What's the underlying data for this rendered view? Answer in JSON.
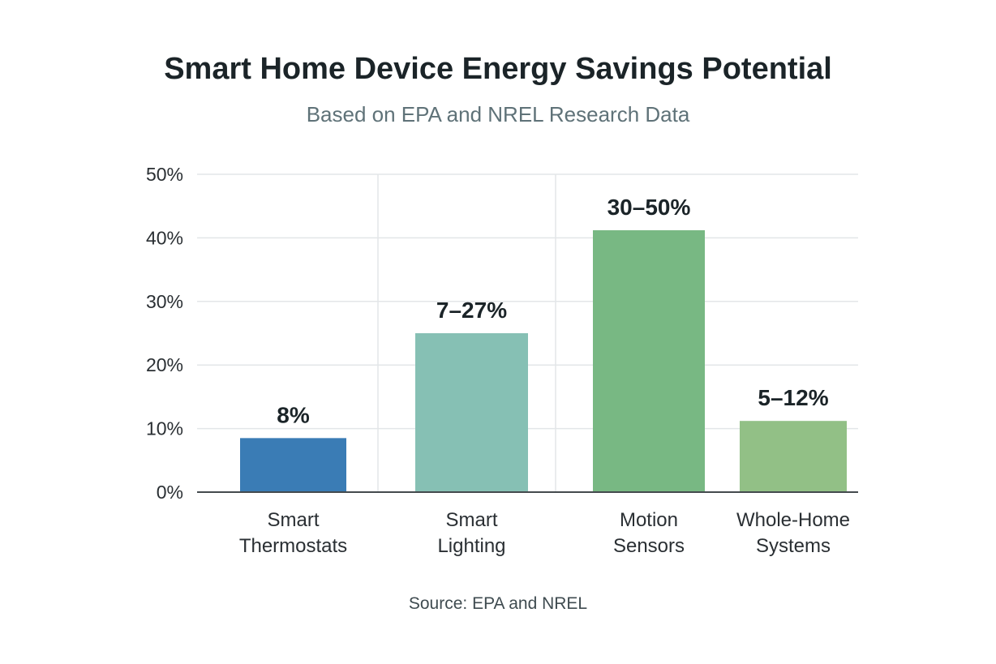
{
  "chart_data": {
    "type": "bar",
    "title": "Smart Home Device Energy Savings Potential",
    "subtitle": "Based on EPA and NREL Research Data",
    "source": "Source: EPA and NREL",
    "xlabel": "",
    "ylabel": "",
    "ylim": [
      0,
      50
    ],
    "yticks": [
      0,
      10,
      20,
      30,
      40,
      50
    ],
    "ytick_labels": [
      "0%",
      "10%",
      "20%",
      "30%",
      "40%",
      "50%"
    ],
    "grid": true,
    "legend": "none",
    "categories": [
      [
        "Smart",
        "Thermostats"
      ],
      [
        "Smart",
        "Lighting"
      ],
      [
        "Motion",
        "Sensors"
      ],
      [
        "Whole-Home",
        "Systems"
      ]
    ],
    "values": [
      8.5,
      25,
      41.2,
      11.2
    ],
    "data_labels": [
      "8%",
      "7–27%",
      "30–50%",
      "5–12%"
    ],
    "colors": [
      "#3a7cb5",
      "#86c0b4",
      "#78b883",
      "#92c086"
    ],
    "axis_color": "#444a4e",
    "grid_color": "#e3e6e8"
  }
}
